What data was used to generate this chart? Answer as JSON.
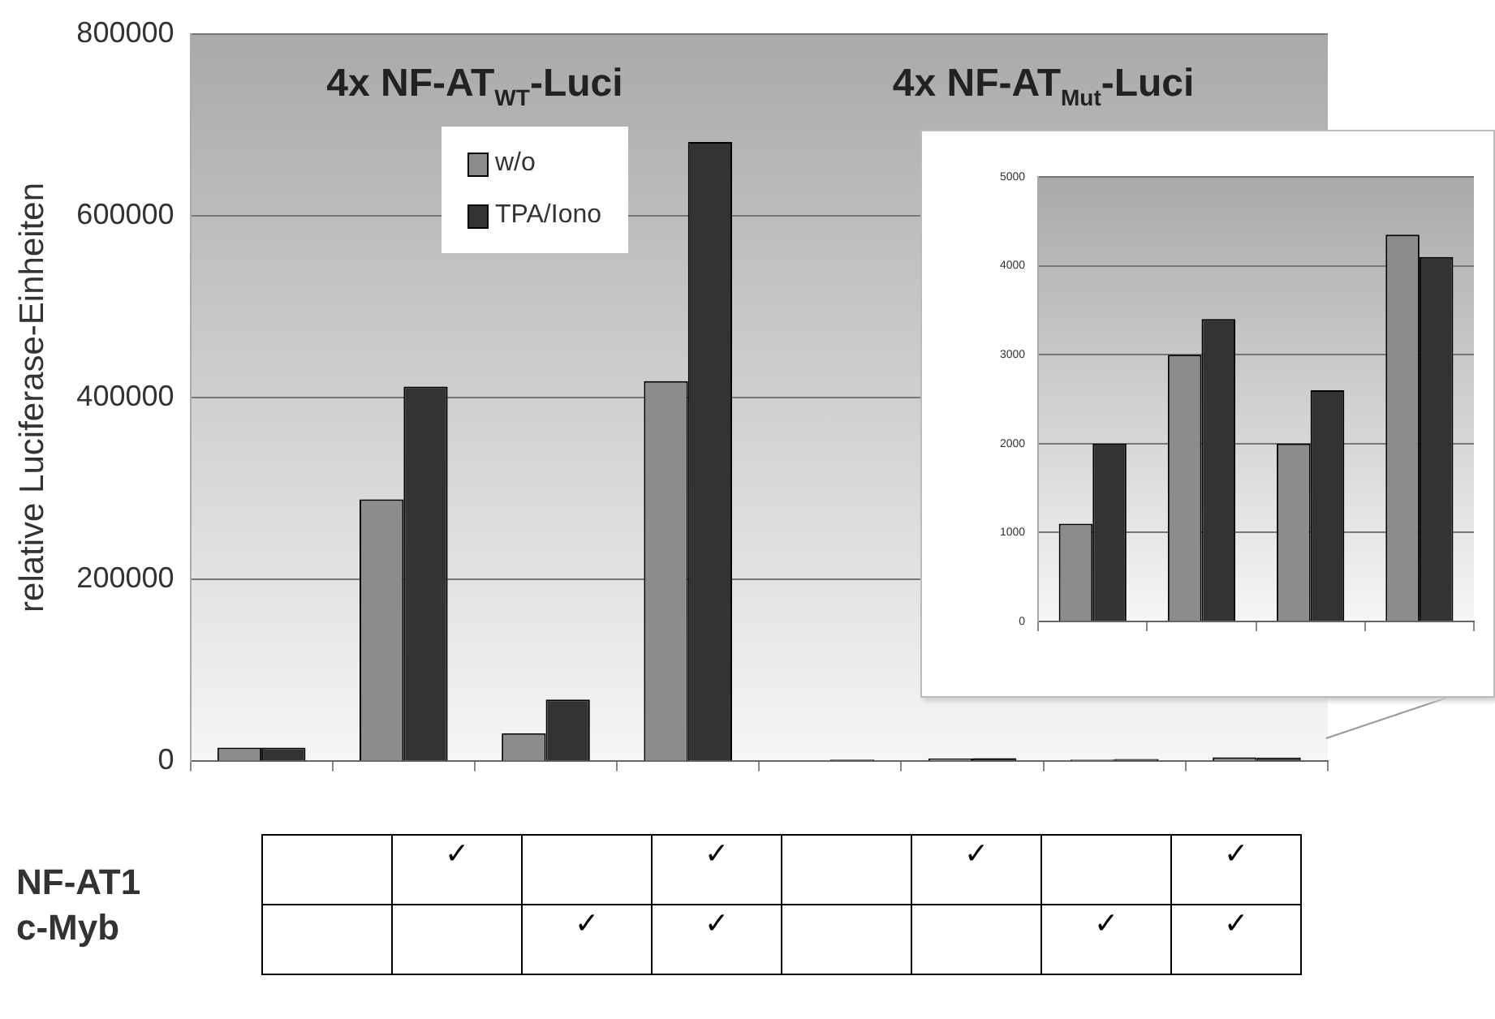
{
  "chart_data": [
    {
      "type": "bar",
      "ylabel": "relative Luciferase-Einheiten",
      "categories": [
        null,
        null,
        null,
        null,
        null,
        null,
        null,
        null
      ],
      "series": [
        {
          "name": "w/o",
          "color": "#8c8c8c",
          "values": [
            15000,
            288000,
            31000,
            418000,
            1100,
            3000,
            2000,
            4350
          ]
        },
        {
          "name": "TPA/Iono",
          "color": "#333333",
          "values": [
            15000,
            412000,
            68000,
            681000,
            2000,
            3400,
            2600,
            4100
          ]
        }
      ],
      "ylim": [
        0,
        800000
      ],
      "yticks": [
        0,
        200000,
        400000,
        600000,
        800000
      ],
      "grid": "y",
      "legend": "top",
      "annotations": [
        "4x NF-AT$_{WT}$-Luci",
        "4x NF-AT$_{Mut}$-Luci"
      ]
    },
    {
      "type": "bar",
      "categories": [
        null,
        null,
        null,
        null
      ],
      "series": [
        {
          "color": "#8c8c8c",
          "values": [
            1100,
            3000,
            2000,
            4350
          ]
        },
        {
          "color": "#333333",
          "values": [
            2000,
            3400,
            2600,
            4100
          ]
        }
      ],
      "ylim": [
        0,
        5000
      ],
      "yticks": [
        0,
        1000,
        2000,
        3000,
        4000,
        5000
      ],
      "grid": "y"
    },
    {
      "type": "other",
      "y_categories": [
        "NF-AT1",
        "c-Myb"
      ],
      "cell_labels": [
        [
          null,
          "✓",
          null,
          "✓",
          null,
          "✓",
          null,
          "✓"
        ],
        [
          null,
          null,
          "✓",
          "✓",
          null,
          null,
          "✓",
          "✓"
        ]
      ]
    }
  ]
}
